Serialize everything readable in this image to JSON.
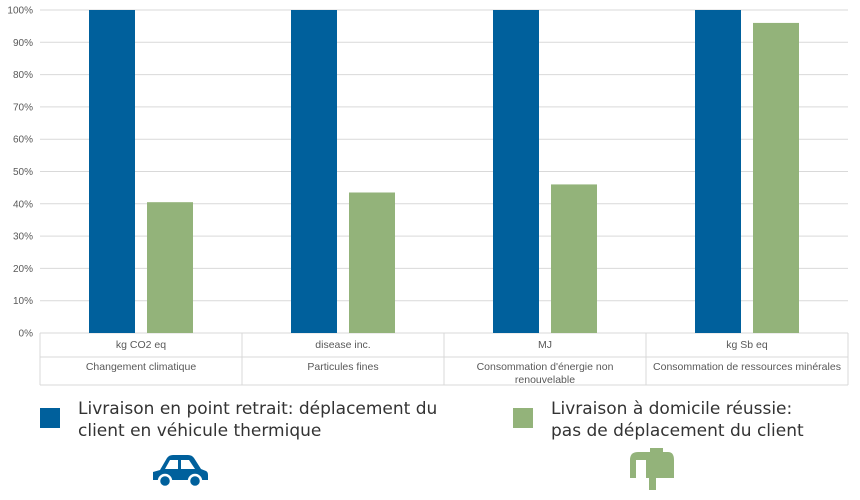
{
  "colors": {
    "series1": "#00609c",
    "series2": "#93b37a",
    "grid": "#d9d9d9",
    "axis_text": "#595959"
  },
  "chart_data": {
    "type": "bar",
    "y_ticks": [
      "0%",
      "10%",
      "20%",
      "30%",
      "40%",
      "50%",
      "60%",
      "70%",
      "80%",
      "90%",
      "100%"
    ],
    "ylim": [
      0,
      100
    ],
    "categories": [
      {
        "unit": "kg CO2 eq",
        "label": [
          "Changement climatique"
        ]
      },
      {
        "unit": "disease inc.",
        "label": [
          "Particules fines"
        ]
      },
      {
        "unit": "MJ",
        "label": [
          "Consommation d'énergie non",
          "renouvelable"
        ]
      },
      {
        "unit": "kg Sb eq",
        "label": [
          "Consommation de ressources minérales"
        ]
      }
    ],
    "series": [
      {
        "name": "Livraison en point retrait: déplacement du client en véhicule thermique",
        "values": [
          100,
          100,
          100,
          100
        ]
      },
      {
        "name": "Livraison à domicile réussie: pas de déplacement du client",
        "values": [
          40.5,
          43.5,
          46,
          96
        ]
      }
    ],
    "grid": true,
    "legend_position": "bottom"
  },
  "legend": [
    {
      "line1": "Livraison en point retrait: déplacement du",
      "line2": "client en véhicule thermique",
      "icon": "car-icon"
    },
    {
      "line1": "Livraison à domicile réussie:",
      "line2": "pas de déplacement du client",
      "icon": "mailbox-icon"
    }
  ]
}
